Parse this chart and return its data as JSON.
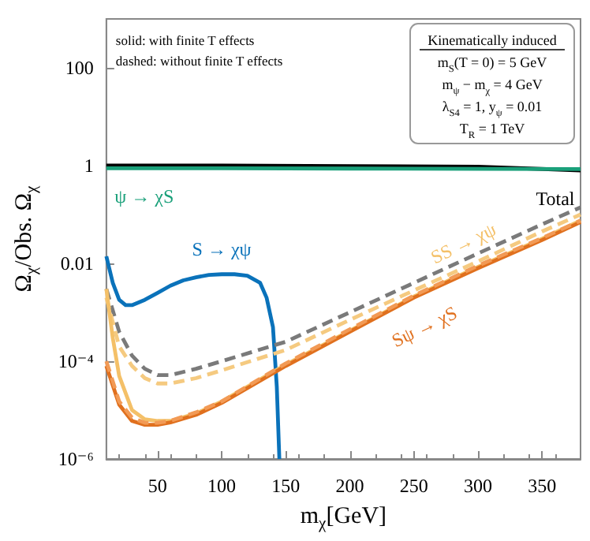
{
  "chart_data": {
    "type": "line",
    "xlabel": "m$_{χ}$[GeV]",
    "ylabel": "Ω$_{χ}$/Obs. Ω$_{χ}$",
    "annotations": [
      "solid: with finite T effects",
      "dashed: without finite T effects",
      "Kinematically induced",
      "m$_{S}$(T = 0) = 5 GeV",
      "m$_{ψ}$ − m$_{χ}$ = 4 GeV",
      "λ$_{S4}$ = 1, y$_{ψ}$ = 0.01",
      "T$_{R}$ = 1 TeV"
    ],
    "xlim": [
      10,
      380
    ],
    "xticks": [
      50,
      100,
      150,
      200,
      250,
      300,
      350
    ],
    "ylim": [
      1e-06,
      1000
    ],
    "log": "y",
    "yticks": [
      {
        "value": 1e-06,
        "label": "10⁻⁶"
      },
      {
        "value": 0.0001,
        "label": "10⁻⁴"
      },
      0.01,
      1,
      100
    ],
    "grid": false,
    "legend": false,
    "series": [
      {
        "name": "Total",
        "color": "#000000",
        "line_style": "solid",
        "x": [
          10,
          100,
          200,
          300,
          380
        ],
        "values": [
          1,
          1,
          0.98,
          0.95,
          0.8
        ]
      },
      {
        "name": "ψ → χS",
        "color": "#1aa07a",
        "line_style": "solid",
        "x": [
          10,
          100,
          200,
          300,
          380
        ],
        "values": [
          0.88,
          0.88,
          0.87,
          0.86,
          0.85
        ]
      },
      {
        "name": "S → χψ",
        "color": "#0a72ba",
        "line_style": "solid",
        "x": [
          10,
          15,
          20,
          25,
          30,
          40,
          50,
          60,
          70,
          80,
          90,
          100,
          110,
          120,
          130,
          135,
          140,
          143,
          145
        ],
        "values": [
          0.014,
          0.004,
          0.0018,
          0.0014,
          0.0014,
          0.0018,
          0.0025,
          0.0035,
          0.0045,
          0.0052,
          0.0058,
          0.006,
          0.006,
          0.0056,
          0.004,
          0.002,
          0.0005,
          3e-05,
          1e-06
        ]
      },
      {
        "color": "#7a7a7a",
        "line_style": "dashed",
        "x": [
          10,
          20,
          30,
          40,
          50,
          60,
          80,
          100,
          150,
          200,
          250,
          300,
          350,
          380
        ],
        "values": [
          0.003,
          0.0004,
          0.00013,
          7e-05,
          5.2e-05,
          5.2e-05,
          7e-05,
          0.0001,
          0.00025,
          0.001,
          0.004,
          0.016,
          0.063,
          0.14
        ]
      },
      {
        "color": "#f5ca80",
        "line_style": "dashed",
        "x": [
          10,
          20,
          30,
          40,
          50,
          60,
          80,
          100,
          150,
          200,
          250,
          300,
          350,
          380
        ],
        "values": [
          0.002,
          0.0002,
          8e-05,
          4.5e-05,
          3.5e-05,
          3.5e-05,
          4.5e-05,
          6.5e-05,
          0.00017,
          0.0007,
          0.0028,
          0.011,
          0.045,
          0.1
        ]
      },
      {
        "name": "SS → χψ",
        "color": "#f4c068",
        "line_style": "solid",
        "x": [
          10,
          15,
          20,
          30,
          40,
          50,
          60,
          80,
          100,
          150,
          200,
          250,
          300,
          350,
          380
        ],
        "values": [
          0.003,
          0.0003,
          5e-05,
          1e-05,
          6.5e-06,
          6e-06,
          6e-06,
          8.5e-06,
          1.5e-05,
          8.5e-05,
          0.00042,
          0.0021,
          0.0085,
          0.032,
          0.075
        ]
      },
      {
        "name": "Sψ → χS",
        "color": "#e0701e",
        "line_style": "solid",
        "x": [
          10,
          20,
          30,
          40,
          50,
          60,
          80,
          100,
          150,
          200,
          250,
          300,
          350,
          380
        ],
        "values": [
          8e-05,
          1.3e-05,
          6e-06,
          5e-06,
          5e-06,
          5.6e-06,
          8e-06,
          1.4e-05,
          8e-05,
          0.0004,
          0.002,
          0.008,
          0.03,
          0.07
        ]
      },
      {
        "color": "#f29a55",
        "line_style": "dashed",
        "x": [
          10,
          20,
          30,
          40,
          50,
          60,
          80,
          100,
          150,
          200,
          250,
          300,
          350,
          380
        ],
        "values": [
          0.0001,
          1.5e-05,
          7e-06,
          5.5e-06,
          5.5e-06,
          6e-06,
          9e-06,
          1.5e-05,
          9e-05,
          0.00045,
          0.0022,
          0.009,
          0.033,
          0.075
        ]
      }
    ]
  }
}
